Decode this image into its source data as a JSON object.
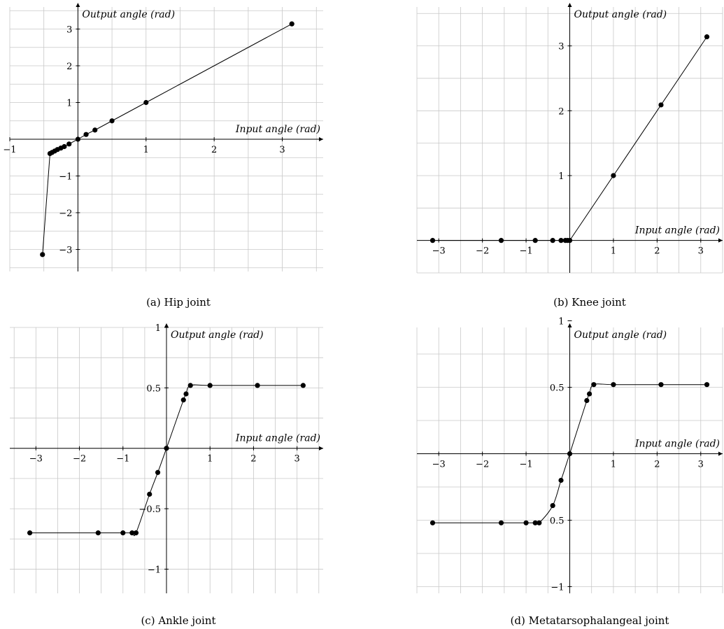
{
  "chart_data": [
    {
      "type": "line",
      "caption": "(a) Hip joint",
      "xlabel": "Input angle (rad)",
      "ylabel": "Output angle (rad)",
      "xlim": [
        -1.0,
        3.6
      ],
      "ylim": [
        -3.6,
        3.6
      ],
      "xticks": [
        -1,
        1,
        2,
        3
      ],
      "xtick_labels": [
        "−1",
        "1",
        "2",
        "3"
      ],
      "yticks": [
        -3,
        -2,
        -1,
        1,
        2,
        3
      ],
      "ytick_labels": [
        "−3",
        "−2",
        "−1",
        "1",
        "2",
        "3"
      ],
      "grid": true,
      "smooth": false,
      "points": [
        [
          -0.52,
          -3.14
        ],
        [
          -0.41,
          -0.39
        ],
        [
          -0.38,
          -0.36
        ],
        [
          -0.34,
          -0.32
        ],
        [
          -0.3,
          -0.28
        ],
        [
          -0.25,
          -0.24
        ],
        [
          -0.2,
          -0.2
        ],
        [
          -0.13,
          -0.13
        ],
        [
          0.0,
          0.0
        ],
        [
          0.12,
          0.13
        ],
        [
          0.25,
          0.25
        ],
        [
          0.5,
          0.5
        ],
        [
          1.0,
          1.0
        ],
        [
          3.14,
          3.14
        ]
      ]
    },
    {
      "type": "line",
      "caption": "(b) Knee joint",
      "xlabel": "Input angle (rad)",
      "ylabel": "Output angle (rad)",
      "xlim": [
        -3.5,
        3.5
      ],
      "ylim": [
        -0.5,
        3.6
      ],
      "xticks": [
        -3,
        -2,
        -1,
        1,
        2,
        3
      ],
      "xtick_labels": [
        "−3",
        "−2",
        "−1",
        "1",
        "2",
        "3"
      ],
      "yticks": [
        1,
        2,
        3
      ],
      "ytick_labels": [
        "1",
        "2",
        "3"
      ],
      "grid": true,
      "smooth": false,
      "points": [
        [
          -3.14,
          0
        ],
        [
          -1.57,
          0
        ],
        [
          -0.79,
          0
        ],
        [
          -0.39,
          0
        ],
        [
          -0.2,
          0
        ],
        [
          -0.1,
          0
        ],
        [
          -0.05,
          0
        ],
        [
          0.0,
          0
        ],
        [
          1.0,
          1.0
        ],
        [
          2.09,
          2.09
        ],
        [
          3.14,
          3.14
        ]
      ]
    },
    {
      "type": "line",
      "caption": "(c) Ankle joint",
      "xlabel": "Input angle (rad)",
      "ylabel": "Output angle (rad)",
      "xlim": [
        -3.6,
        3.6
      ],
      "ylim": [
        -1.2,
        1.0
      ],
      "xticks": [
        -3,
        -2,
        -1,
        1,
        2,
        3
      ],
      "xtick_labels": [
        "−3",
        "−2",
        "−1",
        "1",
        "2",
        "3"
      ],
      "yticks": [
        -1,
        -0.5,
        0.5,
        1
      ],
      "ytick_labels": [
        "−1",
        "−0.5",
        "0.5",
        "1"
      ],
      "grid": true,
      "smooth": true,
      "points": [
        [
          -3.14,
          -0.7
        ],
        [
          -1.57,
          -0.7
        ],
        [
          -1.0,
          -0.7
        ],
        [
          -0.79,
          -0.7
        ],
        [
          -0.7,
          -0.7
        ],
        [
          -0.39,
          -0.38
        ],
        [
          -0.2,
          -0.2
        ],
        [
          0.0,
          0.0
        ],
        [
          0.39,
          0.4
        ],
        [
          0.45,
          0.45
        ],
        [
          0.55,
          0.52
        ],
        [
          1.0,
          0.52
        ],
        [
          2.09,
          0.52
        ],
        [
          3.14,
          0.52
        ]
      ]
    },
    {
      "type": "line",
      "caption": "(d) Metatarsophalangeal joint",
      "xlabel": "Input angle (rad)",
      "ylabel": "Output angle (rad)",
      "xlim": [
        -3.5,
        3.5
      ],
      "ylim": [
        -1.05,
        0.95
      ],
      "xticks": [
        -3,
        -2,
        -1,
        1,
        2,
        3
      ],
      "xtick_labels": [
        "−3",
        "−2",
        "−1",
        "1",
        "2",
        "3"
      ],
      "yticks": [
        -1,
        -0.5,
        0.5,
        1
      ],
      "ytick_labels": [
        "−1",
        "0.5",
        "0.5",
        "1"
      ],
      "grid": true,
      "smooth": true,
      "points": [
        [
          -3.14,
          -0.52
        ],
        [
          -1.57,
          -0.52
        ],
        [
          -1.0,
          -0.52
        ],
        [
          -0.79,
          -0.52
        ],
        [
          -0.7,
          -0.52
        ],
        [
          -0.39,
          -0.39
        ],
        [
          -0.2,
          -0.2
        ],
        [
          0.0,
          0.0
        ],
        [
          0.39,
          0.4
        ],
        [
          0.45,
          0.45
        ],
        [
          0.55,
          0.52
        ],
        [
          1.0,
          0.52
        ],
        [
          2.09,
          0.52
        ],
        [
          3.14,
          0.52
        ]
      ]
    }
  ]
}
